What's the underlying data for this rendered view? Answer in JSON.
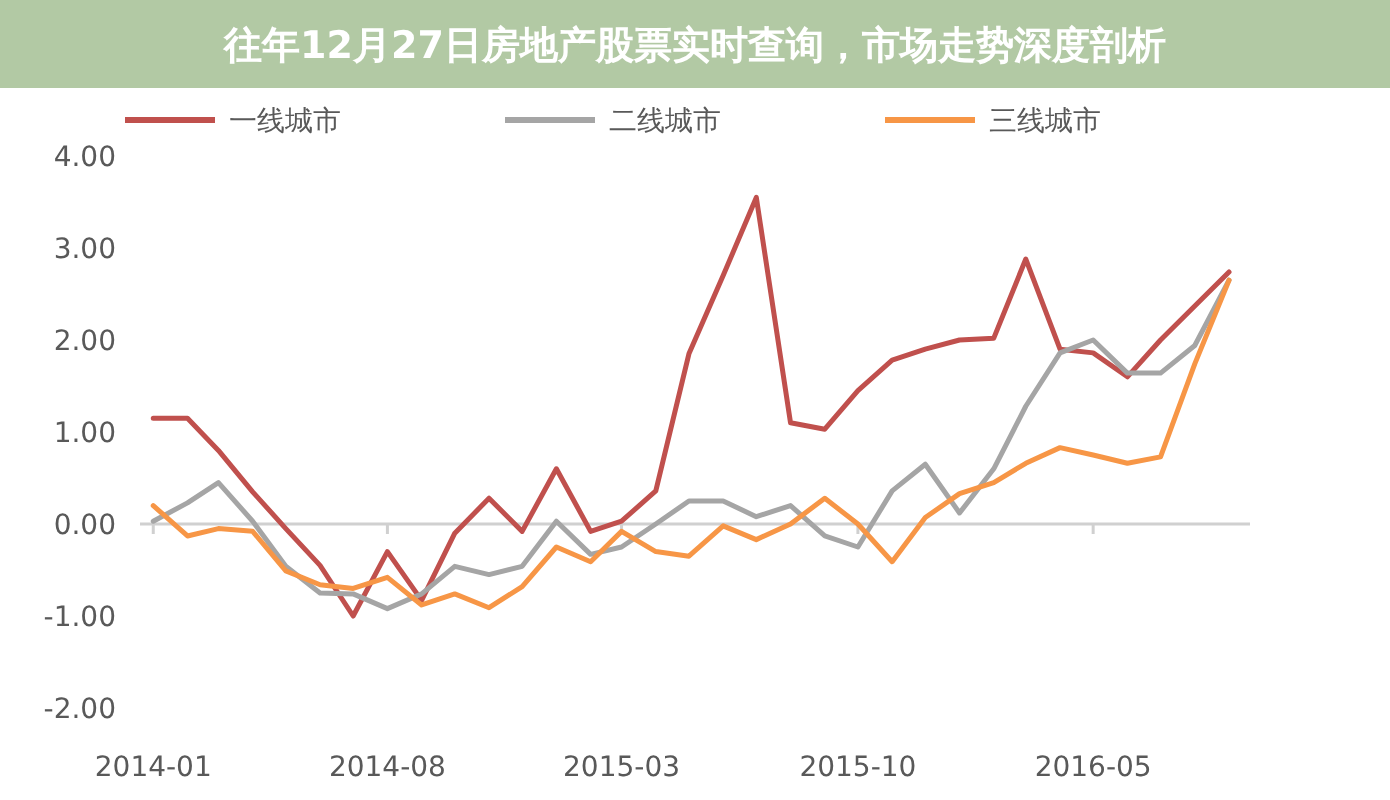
{
  "chart_data": {
    "type": "line",
    "title": "往年12月27日房地产股票实时查询，市场走势深度剖析",
    "x": [
      "2014-01",
      "2014-02",
      "2014-03",
      "2014-04",
      "2014-05",
      "2014-06",
      "2014-07",
      "2014-08",
      "2014-09",
      "2014-10",
      "2014-11",
      "2014-12",
      "2015-01",
      "2015-02",
      "2015-03",
      "2015-04",
      "2015-05",
      "2015-06",
      "2015-07",
      "2015-08",
      "2015-09",
      "2015-10",
      "2015-11",
      "2015-12",
      "2016-01",
      "2016-02",
      "2016-03",
      "2016-04",
      "2016-05",
      "2016-06",
      "2016-07",
      "2016-08",
      "2016-09"
    ],
    "series": [
      {
        "name": "一线城市",
        "color": "#c0504d",
        "values": [
          1.15,
          1.15,
          0.8,
          0.35,
          -0.05,
          -0.45,
          -1.0,
          -0.3,
          -0.83,
          -0.1,
          0.28,
          -0.08,
          0.6,
          -0.08,
          0.03,
          0.36,
          1.85,
          2.7,
          3.55,
          1.1,
          1.03,
          1.45,
          1.78,
          1.9,
          2.0,
          2.02,
          2.88,
          1.9,
          1.86,
          1.6,
          2.0,
          2.37,
          2.74
        ]
      },
      {
        "name": "二线城市",
        "color": "#a5a5a5",
        "values": [
          0.03,
          0.23,
          0.45,
          0.03,
          -0.46,
          -0.75,
          -0.76,
          -0.92,
          -0.76,
          -0.46,
          -0.55,
          -0.46,
          0.03,
          -0.33,
          -0.25,
          0.0,
          0.25,
          0.25,
          0.08,
          0.2,
          -0.13,
          -0.25,
          0.36,
          0.65,
          0.12,
          0.6,
          1.28,
          1.86,
          2.0,
          1.64,
          1.64,
          1.94,
          2.65
        ]
      },
      {
        "name": "三线城市",
        "color": "#f79646",
        "values": [
          0.2,
          -0.13,
          -0.05,
          -0.08,
          -0.51,
          -0.66,
          -0.7,
          -0.58,
          -0.88,
          -0.76,
          -0.91,
          -0.68,
          -0.25,
          -0.41,
          -0.08,
          -0.3,
          -0.35,
          -0.02,
          -0.17,
          0.0,
          0.28,
          0.0,
          -0.41,
          0.07,
          0.33,
          0.45,
          0.66,
          0.83,
          0.75,
          0.66,
          0.73,
          1.74,
          2.65
        ]
      }
    ],
    "xlim": [
      "2013-12-20",
      "2016-09-20"
    ],
    "xticks": [
      "2014-01",
      "2014-08",
      "2015-03",
      "2015-10",
      "2016-05"
    ],
    "ylim": [
      -2,
      4
    ],
    "yticks": [
      {
        "value": -2,
        "label": "-2.00"
      },
      {
        "value": -1,
        "label": "-1.00"
      },
      {
        "value": 0,
        "label": "0.00"
      },
      {
        "value": 1,
        "label": "1.00"
      },
      {
        "value": 2,
        "label": "2.00"
      },
      {
        "value": 3,
        "label": "3.00"
      },
      {
        "value": 4,
        "label": "4.00"
      }
    ],
    "legend": "top",
    "marker": "none",
    "line_style": "solid"
  }
}
